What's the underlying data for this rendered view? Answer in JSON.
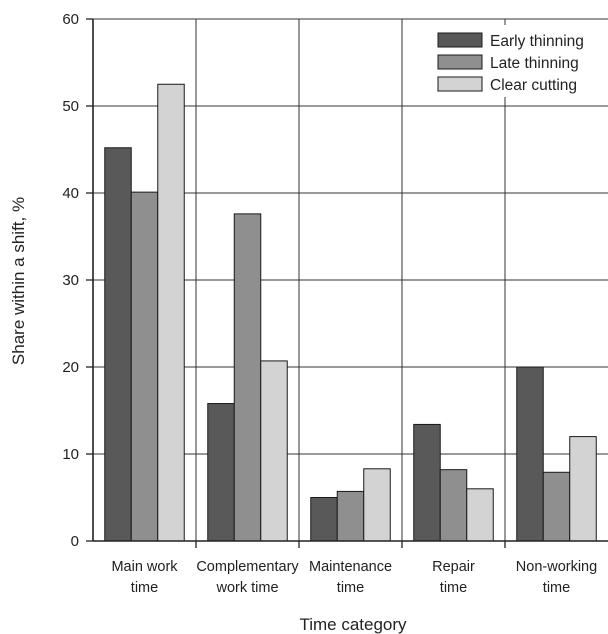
{
  "chart_data": {
    "type": "bar",
    "xlabel": "Time category",
    "ylabel": "Share within a shift, %",
    "ylim": [
      0,
      60
    ],
    "yticks": [
      "0",
      "10",
      "20",
      "30",
      "40",
      "50",
      "60"
    ],
    "grid": true,
    "legend_position": "top-right",
    "categories": [
      [
        "Main work",
        "time"
      ],
      [
        "Complementary",
        "work time"
      ],
      [
        "Maintenance",
        "time"
      ],
      [
        "Repair",
        "time"
      ],
      [
        "Non-working",
        "time"
      ]
    ],
    "series": [
      {
        "name": "Early thinning",
        "color": "#595959",
        "values": [
          45.2,
          15.8,
          5.0,
          13.4,
          20.0
        ]
      },
      {
        "name": "Late thinning",
        "color": "#8f8f8f",
        "values": [
          40.1,
          37.6,
          5.7,
          8.2,
          7.9
        ]
      },
      {
        "name": "Clear cutting",
        "color": "#d3d3d3",
        "values": [
          52.5,
          20.7,
          8.3,
          6.0,
          12.0
        ]
      }
    ]
  }
}
